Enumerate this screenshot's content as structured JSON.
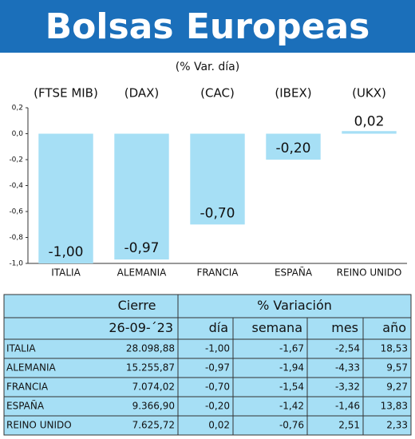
{
  "chart_data": {
    "type": "bar",
    "title": "Bolsas Europeas",
    "subtitle": "(% Var. día)",
    "index_labels": [
      "(FTSE MIB)",
      "(DAX)",
      "(CAC)",
      "(IBEX)",
      "(UKX)"
    ],
    "categories": [
      "ITALIA",
      "ALEMANIA",
      "FRANCIA",
      "ESPAÑA",
      "REINO UNIDO"
    ],
    "values": [
      -1.0,
      -0.97,
      -0.7,
      -0.2,
      0.02
    ],
    "value_labels": [
      "-1,00",
      "-0,97",
      "-0,70",
      "-0,20",
      "0,02"
    ],
    "color": "#a6dff5",
    "ylim": [
      -1.0,
      0.2
    ],
    "yticks": [
      {
        "value": 0.2,
        "label": "0,2"
      },
      {
        "value": 0,
        "label": "0,0"
      },
      {
        "value": -0.2,
        "label": "-0,2"
      },
      {
        "value": -0.4,
        "label": "-0,4"
      },
      {
        "value": -0.6,
        "label": "-0,6"
      },
      {
        "value": -0.8,
        "label": "-0,8"
      },
      {
        "value": -1.0,
        "label": "-1,0"
      }
    ],
    "grid": false
  },
  "table": {
    "headers": [
      "Cierre",
      "% Variación"
    ],
    "subheaders": [
      "26-09-´23",
      "día",
      "semana",
      "mes",
      "año"
    ],
    "rows": [
      [
        "ITALIA",
        "28.098,88",
        "-1,00",
        "-1,67",
        "-2,54",
        "18,53"
      ],
      [
        "ALEMANIA",
        "15.255,87",
        "-0,97",
        "-1,94",
        "-4,33",
        "9,57"
      ],
      [
        "FRANCIA",
        "7.074,02",
        "-0,70",
        "-1,54",
        "-3,32",
        "9,27"
      ],
      [
        "ESPAÑA",
        "9.366,90",
        "-0,20",
        "-1,42",
        "-1,46",
        "13,83"
      ],
      [
        "REINO UNIDO",
        "7.625,72",
        "0,02",
        "-0,76",
        "2,51",
        "2,33"
      ]
    ]
  }
}
